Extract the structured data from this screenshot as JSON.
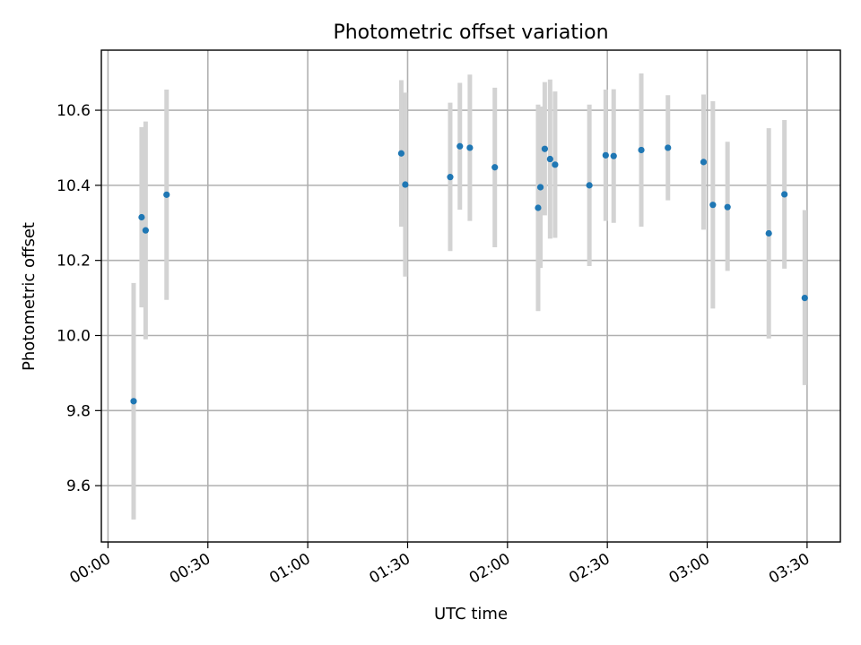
{
  "chart_data": {
    "type": "scatter",
    "title": "Photometric offset variation",
    "xlabel": "UTC time",
    "ylabel": "Photometric offset",
    "x_unit": "time of day (HH:MM)",
    "xlim": [
      "-00:02",
      "03:40"
    ],
    "ylim": [
      9.45,
      10.76
    ],
    "x_ticks": [
      "00:00",
      "00:30",
      "01:00",
      "01:30",
      "02:00",
      "02:30",
      "03:00",
      "03:30"
    ],
    "y_ticks": [
      9.6,
      9.8,
      10.0,
      10.2,
      10.4,
      10.6
    ],
    "y_tick_labels": [
      "9.6",
      "9.8",
      "10.0",
      "10.2",
      "10.4",
      "10.6"
    ],
    "x_tick_label_rotation_deg": 30,
    "grid": true,
    "legend": "none",
    "marker_color": "#1f77b4",
    "errorbar_color": "#d3d3d3",
    "points": [
      {
        "x": "00:07.7",
        "y": 9.825,
        "ylow": 9.51,
        "yhigh": 10.14
      },
      {
        "x": "00:10.1",
        "y": 10.315,
        "ylow": 10.075,
        "yhigh": 10.555
      },
      {
        "x": "00:11.3",
        "y": 10.28,
        "ylow": 9.99,
        "yhigh": 10.57
      },
      {
        "x": "00:17.6",
        "y": 10.375,
        "ylow": 10.095,
        "yhigh": 10.655
      },
      {
        "x": "01:28.1",
        "y": 10.485,
        "ylow": 10.29,
        "yhigh": 10.68
      },
      {
        "x": "01:29.3",
        "y": 10.402,
        "ylow": 10.157,
        "yhigh": 10.647
      },
      {
        "x": "01:42.8",
        "y": 10.422,
        "ylow": 10.225,
        "yhigh": 10.62
      },
      {
        "x": "01:45.7",
        "y": 10.504,
        "ylow": 10.335,
        "yhigh": 10.673
      },
      {
        "x": "01:48.7",
        "y": 10.5,
        "ylow": 10.305,
        "yhigh": 10.695
      },
      {
        "x": "01:56.2",
        "y": 10.448,
        "ylow": 10.235,
        "yhigh": 10.66
      },
      {
        "x": "02:09.2",
        "y": 10.34,
        "ylow": 10.065,
        "yhigh": 10.615
      },
      {
        "x": "02:09.9",
        "y": 10.395,
        "ylow": 10.18,
        "yhigh": 10.61
      },
      {
        "x": "02:11.2",
        "y": 10.497,
        "ylow": 10.32,
        "yhigh": 10.675
      },
      {
        "x": "02:12.8",
        "y": 10.47,
        "ylow": 10.258,
        "yhigh": 10.682
      },
      {
        "x": "02:14.3",
        "y": 10.455,
        "ylow": 10.26,
        "yhigh": 10.65
      },
      {
        "x": "02:24.6",
        "y": 10.4,
        "ylow": 10.185,
        "yhigh": 10.615
      },
      {
        "x": "02:29.5",
        "y": 10.48,
        "ylow": 10.305,
        "yhigh": 10.655
      },
      {
        "x": "02:31.9",
        "y": 10.478,
        "ylow": 10.3,
        "yhigh": 10.656
      },
      {
        "x": "02:40.2",
        "y": 10.494,
        "ylow": 10.29,
        "yhigh": 10.698
      },
      {
        "x": "02:48.2",
        "y": 10.5,
        "ylow": 10.36,
        "yhigh": 10.64
      },
      {
        "x": "02:58.9",
        "y": 10.462,
        "ylow": 10.282,
        "yhigh": 10.642
      },
      {
        "x": "03:01.7",
        "y": 10.348,
        "ylow": 10.072,
        "yhigh": 10.624
      },
      {
        "x": "03:06.1",
        "y": 10.342,
        "ylow": 10.172,
        "yhigh": 10.516
      },
      {
        "x": "03:18.5",
        "y": 10.272,
        "ylow": 9.992,
        "yhigh": 10.552
      },
      {
        "x": "03:23.2",
        "y": 10.376,
        "ylow": 10.178,
        "yhigh": 10.574
      },
      {
        "x": "03:29.3",
        "y": 10.1,
        "ylow": 9.868,
        "yhigh": 10.334
      }
    ]
  }
}
